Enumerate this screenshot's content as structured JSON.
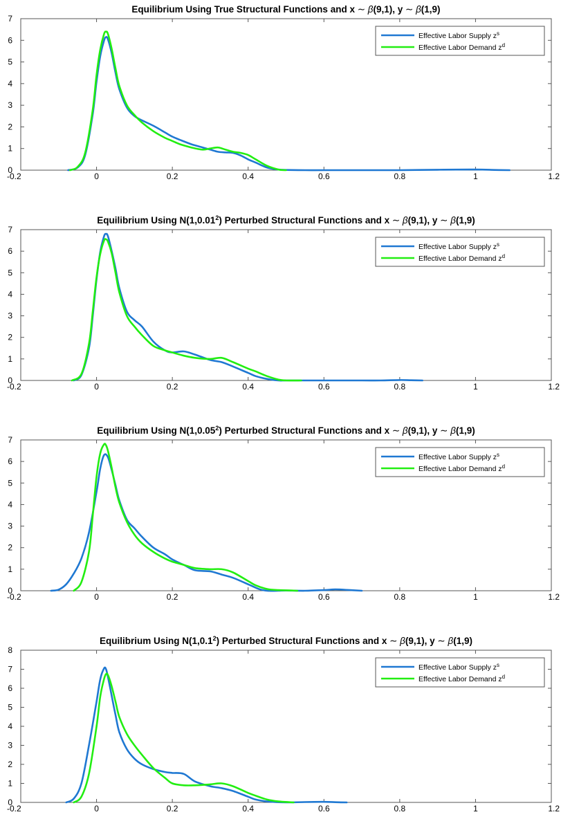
{
  "chart_data": [
    {
      "type": "line",
      "title_parts": [
        "Equilibrium Using True Structural Functions and x ",
        "∼",
        " β",
        "(9,1), y ",
        "∼",
        " β",
        "(1,9)"
      ],
      "xlim": [
        -0.2,
        1.2
      ],
      "ylim": [
        0,
        7
      ],
      "xticks": [
        -0.2,
        0,
        0.2,
        0.4,
        0.6,
        0.8,
        1,
        1.2
      ],
      "xtick_labels": [
        "-0.2",
        "0",
        "0.2",
        "0.4",
        "0.6",
        "0.8",
        "1",
        "1.2"
      ],
      "yticks": [
        0,
        1,
        2,
        3,
        4,
        5,
        6,
        7
      ],
      "ytick_labels": [
        "0",
        "1",
        "2",
        "3",
        "4",
        "5",
        "6",
        "7"
      ],
      "legend_position": "top-right",
      "grid": false,
      "series": [
        {
          "name": "Effective Labor Supply z",
          "sup": "s",
          "color": "#1f78d2",
          "x": [
            -0.075,
            -0.05,
            -0.03,
            -0.01,
            0.0,
            0.01,
            0.02,
            0.025,
            0.03,
            0.04,
            0.05,
            0.06,
            0.08,
            0.1,
            0.12,
            0.15,
            0.18,
            0.2,
            0.22,
            0.25,
            0.28,
            0.3,
            0.32,
            0.34,
            0.36,
            0.38,
            0.4,
            0.42,
            0.45,
            0.48,
            0.5,
            0.55,
            0.6,
            0.7,
            0.8,
            0.9,
            1.0,
            1.05,
            1.09
          ],
          "y": [
            0.0,
            0.12,
            0.7,
            2.6,
            4.1,
            5.3,
            6.0,
            6.15,
            6.05,
            5.4,
            4.5,
            3.75,
            2.9,
            2.5,
            2.3,
            2.05,
            1.75,
            1.55,
            1.4,
            1.2,
            1.05,
            0.95,
            0.85,
            0.82,
            0.8,
            0.68,
            0.5,
            0.35,
            0.12,
            0.03,
            0.01,
            0.0,
            0.0,
            0.0,
            0.0,
            0.02,
            0.03,
            0.01,
            0.0
          ]
        },
        {
          "name": "Effective Labor Demand z",
          "sup": "d",
          "color": "#22ee11",
          "x": [
            -0.07,
            -0.05,
            -0.03,
            -0.01,
            0.0,
            0.01,
            0.02,
            0.025,
            0.03,
            0.04,
            0.05,
            0.06,
            0.08,
            0.1,
            0.12,
            0.15,
            0.18,
            0.2,
            0.22,
            0.25,
            0.28,
            0.3,
            0.32,
            0.34,
            0.36,
            0.38,
            0.4,
            0.42,
            0.45,
            0.48,
            0.5
          ],
          "y": [
            0.0,
            0.15,
            0.8,
            2.8,
            4.4,
            5.6,
            6.3,
            6.4,
            6.3,
            5.6,
            4.7,
            3.9,
            3.0,
            2.55,
            2.2,
            1.8,
            1.5,
            1.35,
            1.2,
            1.05,
            0.95,
            1.0,
            1.05,
            0.95,
            0.85,
            0.8,
            0.7,
            0.5,
            0.2,
            0.03,
            0.0
          ]
        }
      ]
    },
    {
      "type": "line",
      "title_parts": [
        "Equilibrium Using N(1,0.01",
        "2",
        ") Perturbed Structural Functions and x ",
        "∼",
        " β",
        "(9,1), y ",
        "∼",
        " β",
        "(1,9)"
      ],
      "xlim": [
        -0.2,
        1.2
      ],
      "ylim": [
        0,
        7
      ],
      "xticks": [
        -0.2,
        0,
        0.2,
        0.4,
        0.6,
        0.8,
        1,
        1.2
      ],
      "xtick_labels": [
        "-0.2",
        "0",
        "0.2",
        "0.4",
        "0.6",
        "0.8",
        "1",
        "1.2"
      ],
      "yticks": [
        0,
        1,
        2,
        3,
        4,
        5,
        6,
        7
      ],
      "ytick_labels": [
        "0",
        "1",
        "2",
        "3",
        "4",
        "5",
        "6",
        "7"
      ],
      "legend_position": "top-right",
      "grid": false,
      "series": [
        {
          "name": "Effective Labor Supply z",
          "sup": "s",
          "color": "#1f78d2",
          "x": [
            -0.06,
            -0.04,
            -0.02,
            -0.01,
            0.0,
            0.01,
            0.02,
            0.025,
            0.03,
            0.04,
            0.05,
            0.06,
            0.08,
            0.1,
            0.12,
            0.15,
            0.18,
            0.2,
            0.23,
            0.26,
            0.3,
            0.33,
            0.36,
            0.4,
            0.42,
            0.45,
            0.48,
            0.5,
            0.55,
            0.6,
            0.7,
            0.75,
            0.8,
            0.83,
            0.86
          ],
          "y": [
            0.0,
            0.25,
            1.5,
            3.0,
            4.7,
            6.0,
            6.7,
            6.8,
            6.7,
            6.0,
            5.2,
            4.3,
            3.2,
            2.8,
            2.5,
            1.8,
            1.4,
            1.3,
            1.35,
            1.2,
            0.95,
            0.85,
            0.65,
            0.35,
            0.2,
            0.07,
            0.0,
            0.0,
            0.0,
            0.0,
            0.0,
            0.0,
            0.02,
            0.01,
            0.0
          ]
        },
        {
          "name": "Effective Labor Demand z",
          "sup": "d",
          "color": "#22ee11",
          "x": [
            -0.065,
            -0.04,
            -0.02,
            -0.01,
            0.0,
            0.01,
            0.02,
            0.025,
            0.03,
            0.04,
            0.05,
            0.06,
            0.08,
            0.1,
            0.12,
            0.15,
            0.18,
            0.2,
            0.23,
            0.26,
            0.3,
            0.33,
            0.36,
            0.4,
            0.42,
            0.45,
            0.48,
            0.5,
            0.54
          ],
          "y": [
            0.0,
            0.3,
            1.7,
            3.2,
            4.8,
            5.9,
            6.5,
            6.55,
            6.45,
            5.9,
            5.0,
            4.1,
            3.0,
            2.5,
            2.1,
            1.6,
            1.4,
            1.3,
            1.15,
            1.05,
            1.0,
            1.05,
            0.85,
            0.55,
            0.42,
            0.2,
            0.04,
            0.0,
            0.0
          ]
        }
      ]
    },
    {
      "type": "line",
      "title_parts": [
        "Equilibrium Using N(1,0.05",
        "2",
        ") Perturbed Structural Functions and x ",
        "∼",
        " β",
        "(9,1), y ",
        "∼",
        " β",
        "(1,9)"
      ],
      "xlim": [
        -0.2,
        1.2
      ],
      "ylim": [
        0,
        7
      ],
      "xticks": [
        -0.2,
        0,
        0.2,
        0.4,
        0.6,
        0.8,
        1,
        1.2
      ],
      "xtick_labels": [
        "-0.2",
        "0",
        "0.2",
        "0.4",
        "0.6",
        "0.8",
        "1",
        "1.2"
      ],
      "yticks": [
        0,
        1,
        2,
        3,
        4,
        5,
        6,
        7
      ],
      "ytick_labels": [
        "0",
        "1",
        "2",
        "3",
        "4",
        "5",
        "6",
        "7"
      ],
      "legend_position": "top-right",
      "grid": false,
      "series": [
        {
          "name": "Effective Labor Supply z",
          "sup": "s",
          "color": "#1f78d2",
          "x": [
            -0.12,
            -0.1,
            -0.08,
            -0.06,
            -0.04,
            -0.02,
            0.0,
            0.01,
            0.02,
            0.03,
            0.04,
            0.05,
            0.06,
            0.08,
            0.1,
            0.12,
            0.15,
            0.18,
            0.2,
            0.23,
            0.26,
            0.3,
            0.33,
            0.36,
            0.4,
            0.43,
            0.45,
            0.48,
            0.5,
            0.55,
            0.6,
            0.63,
            0.66,
            0.7
          ],
          "y": [
            0.0,
            0.05,
            0.3,
            0.8,
            1.5,
            2.7,
            4.6,
            5.7,
            6.3,
            6.2,
            5.6,
            4.9,
            4.2,
            3.3,
            2.9,
            2.5,
            2.0,
            1.7,
            1.45,
            1.2,
            0.95,
            0.9,
            0.75,
            0.6,
            0.3,
            0.07,
            0.0,
            0.0,
            0.01,
            0.0,
            0.03,
            0.06,
            0.04,
            0.0
          ]
        },
        {
          "name": "Effective Labor Demand z",
          "sup": "d",
          "color": "#22ee11",
          "x": [
            -0.06,
            -0.04,
            -0.02,
            -0.01,
            0.0,
            0.01,
            0.02,
            0.025,
            0.03,
            0.04,
            0.05,
            0.06,
            0.08,
            0.1,
            0.12,
            0.15,
            0.18,
            0.2,
            0.23,
            0.26,
            0.3,
            0.33,
            0.36,
            0.4,
            0.42,
            0.45,
            0.48,
            0.5,
            0.53
          ],
          "y": [
            0.0,
            0.4,
            1.8,
            3.5,
            5.3,
            6.4,
            6.8,
            6.75,
            6.5,
            5.7,
            4.8,
            4.1,
            3.2,
            2.6,
            2.2,
            1.8,
            1.5,
            1.35,
            1.2,
            1.05,
            1.0,
            1.0,
            0.85,
            0.45,
            0.25,
            0.08,
            0.03,
            0.02,
            0.0
          ]
        }
      ]
    },
    {
      "type": "line",
      "title_parts": [
        "Equilibrium Using N(1,0.1",
        "2",
        ") Perturbed Structural Functions and x ",
        "∼",
        " β",
        "(9,1), y ",
        "∼",
        " β",
        "(1,9)"
      ],
      "xlim": [
        -0.2,
        1.2
      ],
      "ylim": [
        0,
        8
      ],
      "xticks": [
        -0.2,
        0,
        0.2,
        0.4,
        0.6,
        0.8,
        1,
        1.2
      ],
      "xtick_labels": [
        "-0.2",
        "0",
        "0.2",
        "0.4",
        "0.6",
        "0.8",
        "1",
        "1.2"
      ],
      "yticks": [
        0,
        1,
        2,
        3,
        4,
        5,
        6,
        7,
        8
      ],
      "ytick_labels": [
        "0",
        "1",
        "2",
        "3",
        "4",
        "5",
        "6",
        "7",
        "8"
      ],
      "legend_position": "top-right",
      "grid": false,
      "series": [
        {
          "name": "Effective Labor Supply z",
          "sup": "s",
          "color": "#1f78d2",
          "x": [
            -0.08,
            -0.06,
            -0.04,
            -0.02,
            0.0,
            0.01,
            0.02,
            0.025,
            0.03,
            0.04,
            0.05,
            0.06,
            0.08,
            0.1,
            0.12,
            0.15,
            0.18,
            0.2,
            0.23,
            0.26,
            0.3,
            0.33,
            0.36,
            0.4,
            0.42,
            0.45,
            0.5,
            0.55,
            0.6,
            0.63,
            0.66
          ],
          "y": [
            0.0,
            0.2,
            1.0,
            3.0,
            5.3,
            6.5,
            7.05,
            7.0,
            6.6,
            5.6,
            4.6,
            3.7,
            2.8,
            2.3,
            2.0,
            1.75,
            1.6,
            1.55,
            1.5,
            1.1,
            0.85,
            0.75,
            0.6,
            0.3,
            0.15,
            0.05,
            0.0,
            0.02,
            0.03,
            0.01,
            0.0
          ]
        },
        {
          "name": "Effective Labor Demand z",
          "sup": "d",
          "color": "#22ee11",
          "x": [
            -0.06,
            -0.04,
            -0.02,
            0.0,
            0.01,
            0.02,
            0.025,
            0.03,
            0.04,
            0.05,
            0.06,
            0.08,
            0.1,
            0.12,
            0.15,
            0.18,
            0.2,
            0.23,
            0.26,
            0.3,
            0.33,
            0.36,
            0.4,
            0.42,
            0.45,
            0.48,
            0.52
          ],
          "y": [
            0.0,
            0.3,
            1.5,
            4.0,
            5.6,
            6.5,
            6.75,
            6.7,
            6.1,
            5.3,
            4.5,
            3.6,
            3.0,
            2.5,
            1.8,
            1.3,
            1.0,
            0.9,
            0.9,
            0.95,
            1.0,
            0.85,
            0.5,
            0.35,
            0.15,
            0.05,
            0.0
          ]
        }
      ]
    }
  ]
}
